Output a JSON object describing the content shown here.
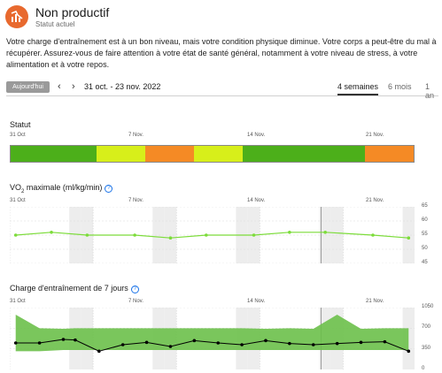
{
  "header": {
    "status_title": "Non productif",
    "status_subtitle": "Statut actuel",
    "status_color": "#e8692e",
    "icon": "running-trend-down-icon"
  },
  "description": "Votre charge d'entraînement est à un bon niveau, mais votre condition physique diminue. Votre corps a peut-être du mal à récupérer. Assurez-vous de faire attention à votre état de santé général, notamment à votre niveau de stress, à votre alimentation et à votre repos.",
  "toolbar": {
    "today_label": "Aujourd'hui",
    "prev_icon": "chevron-left-icon",
    "next_icon": "chevron-right-icon",
    "date_range": "31 oct. - 23 nov. 2022",
    "tabs": [
      "4 semaines",
      "6 mois",
      "1 an"
    ],
    "active_tab": "4 semaines"
  },
  "sections": {
    "statut_title": "Statut",
    "vo2_title_pre": "VO",
    "vo2_title_sub": "2",
    "vo2_title_post": " maximale (ml/kg/min)",
    "charge_title": "Charge d'entraînement de 7 jours"
  },
  "date_labels": [
    "31 Oct",
    "7 Nov.",
    "14 Nov.",
    "21 Nov."
  ],
  "colors": {
    "green": "#4caf1a",
    "yellow_green": "#d7ef1a",
    "orange": "#f58a25",
    "vo2_line": "#7cdc3a",
    "charge_band": "#6cc04a",
    "charge_line": "#000000"
  },
  "status_segments": [
    {
      "status": "productive",
      "days": 7,
      "color": "#4caf1a"
    },
    {
      "status": "maintaining",
      "days": 4,
      "color": "#d7ef1a"
    },
    {
      "status": "unproductive",
      "days": 4,
      "color": "#f58a25"
    },
    {
      "status": "maintaining",
      "days": 4,
      "color": "#d7ef1a"
    },
    {
      "status": "productive",
      "days": 10,
      "color": "#4caf1a"
    },
    {
      "status": "unproductive",
      "days": 4,
      "color": "#f58a25"
    }
  ],
  "chart_data": [
    {
      "type": "line",
      "name": "vo2max",
      "y_ticks": [
        65,
        55,
        45
      ],
      "y_ticks_minor": [
        60,
        50
      ],
      "ylim": [
        45,
        65
      ],
      "x_day_index": [
        0,
        3,
        6,
        10,
        13,
        16,
        20,
        23,
        26,
        30,
        33
      ],
      "values": [
        55,
        56,
        55,
        55,
        54,
        55,
        55,
        56,
        56,
        55,
        54
      ]
    },
    {
      "type": "line",
      "name": "charge_7_jours",
      "y_ticks": [
        1050,
        700,
        350,
        0
      ],
      "ylim": [
        0,
        1050
      ],
      "x_day_index": [
        0,
        2,
        4,
        5,
        7,
        9,
        11,
        13,
        15,
        17,
        19,
        21,
        23,
        25,
        27,
        29,
        31,
        33
      ],
      "values": [
        450,
        450,
        510,
        500,
        310,
        420,
        460,
        390,
        490,
        450,
        420,
        490,
        440,
        420,
        440,
        460,
        470,
        310
      ],
      "band_low": [
        310,
        310,
        330,
        330,
        330,
        330,
        330,
        330,
        330,
        330,
        330,
        330,
        330,
        330,
        330,
        330,
        330,
        330
      ],
      "band_high": [
        930,
        700,
        690,
        700,
        700,
        700,
        700,
        700,
        700,
        700,
        700,
        690,
        700,
        690,
        930,
        690,
        700,
        700
      ]
    }
  ]
}
